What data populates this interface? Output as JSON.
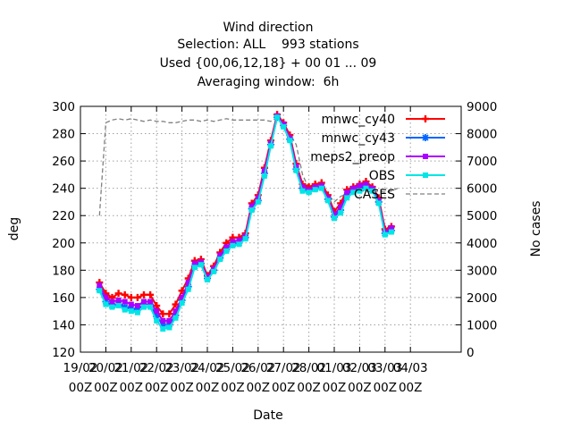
{
  "chart_data": {
    "type": "line",
    "title": [
      "Wind direction",
      "Selection: ALL    993 stations",
      "Used {00,06,12,18} + 00 01 ... 09",
      "Averaging window:  6h"
    ],
    "xlabel": "Date",
    "ylabel": "deg",
    "y2label": "No cases",
    "ylim": [
      120,
      300
    ],
    "yticks": [
      120,
      140,
      160,
      180,
      200,
      220,
      240,
      260,
      280,
      300
    ],
    "y2lim": [
      0,
      9000
    ],
    "y2ticks": [
      0,
      1000,
      2000,
      3000,
      4000,
      5000,
      6000,
      7000,
      8000,
      9000
    ],
    "xlim": [
      0,
      15
    ],
    "xticks": [
      {
        "x": 0,
        "line1": "19/02",
        "line2": "00Z"
      },
      {
        "x": 1,
        "line1": "20/02",
        "line2": "00Z"
      },
      {
        "x": 2,
        "line1": "21/02",
        "line2": "00Z"
      },
      {
        "x": 3,
        "line1": "22/02",
        "line2": "00Z"
      },
      {
        "x": 4,
        "line1": "23/02",
        "line2": "00Z"
      },
      {
        "x": 5,
        "line1": "24/02",
        "line2": "00Z"
      },
      {
        "x": 6,
        "line1": "25/02",
        "line2": "00Z"
      },
      {
        "x": 7,
        "line1": "26/02",
        "line2": "00Z"
      },
      {
        "x": 8,
        "line1": "27/02",
        "line2": "00Z"
      },
      {
        "x": 9,
        "line1": "28/02",
        "line2": "00Z"
      },
      {
        "x": 10,
        "line1": "01/03",
        "line2": "00Z"
      },
      {
        "x": 11,
        "line1": "02/03",
        "line2": "00Z"
      },
      {
        "x": 12,
        "line1": "03/03",
        "line2": "00Z"
      },
      {
        "x": 13,
        "line1": "04/03",
        "line2": "00Z"
      }
    ],
    "grid": true,
    "legend_position": "top-right",
    "x": [
      0.75,
      1,
      1.25,
      1.5,
      1.75,
      2,
      2.25,
      2.5,
      2.75,
      3,
      3.25,
      3.5,
      3.75,
      4,
      4.25,
      4.5,
      4.75,
      5,
      5.25,
      5.5,
      5.75,
      6,
      6.25,
      6.5,
      6.75,
      7,
      7.25,
      7.5,
      7.75,
      8,
      8.25,
      8.5,
      8.75,
      9,
      9.25,
      9.5,
      9.75,
      10,
      10.25,
      10.5,
      10.75,
      11,
      11.25,
      11.5,
      11.75,
      12,
      12.25,
      12.5,
      12.75,
      13
    ],
    "series": [
      {
        "name": "mnwc_cy40",
        "color": "#ff0000",
        "marker": "plus",
        "values": [
          171,
          163,
          160,
          163,
          162,
          160,
          160,
          162,
          162,
          154,
          148,
          148,
          155,
          165,
          174,
          187,
          188,
          176,
          183,
          193,
          200,
          204,
          204,
          207,
          229,
          235,
          255,
          275,
          294,
          288,
          279,
          258,
          243,
          241,
          243,
          244,
          235,
          223,
          229,
          239,
          241,
          243,
          245,
          241,
          233,
          210,
          212,
          null,
          null,
          null
        ]
      },
      {
        "name": "mnwc_cy43",
        "color": "#0066ff",
        "marker": "star",
        "values": [
          166,
          157,
          154,
          155,
          153,
          152,
          151,
          155,
          155,
          146,
          140,
          140,
          147,
          158,
          168,
          183,
          185,
          174,
          180,
          189,
          195,
          199,
          200,
          204,
          225,
          231,
          251,
          272,
          292,
          286,
          276,
          254,
          240,
          238,
          240,
          241,
          232,
          219,
          224,
          235,
          239,
          240,
          242,
          239,
          230,
          207,
          209,
          null,
          null,
          null
        ]
      },
      {
        "name": "meps2_preop",
        "color": "#aa00ff",
        "marker": "square",
        "values": [
          169,
          160,
          157,
          158,
          157,
          155,
          154,
          157,
          157,
          150,
          143,
          143,
          150,
          160,
          171,
          185,
          186,
          175,
          181,
          191,
          197,
          201,
          202,
          205,
          227,
          233,
          253,
          273,
          293,
          287,
          277,
          256,
          241,
          239,
          241,
          242,
          233,
          221,
          226,
          237,
          240,
          242,
          243,
          240,
          231,
          208,
          211,
          null,
          null,
          null
        ]
      },
      {
        "name": "OBS",
        "color": "#00e5e5",
        "marker": "square",
        "values": [
          165,
          155,
          153,
          154,
          151,
          150,
          149,
          153,
          153,
          143,
          137,
          138,
          145,
          156,
          166,
          182,
          184,
          173,
          179,
          188,
          194,
          198,
          199,
          203,
          224,
          230,
          249,
          271,
          292,
          285,
          275,
          253,
          238,
          237,
          239,
          240,
          231,
          218,
          222,
          233,
          237,
          238,
          240,
          238,
          229,
          206,
          208,
          null,
          null,
          null
        ]
      }
    ],
    "cases": {
      "name": "CASES",
      "color": "#808080",
      "style": "dashed",
      "axis": "y2",
      "values": [
        5000,
        8400,
        8500,
        8550,
        8500,
        8550,
        8500,
        8450,
        8500,
        8450,
        8450,
        8400,
        8400,
        8450,
        8500,
        8500,
        8450,
        8500,
        8450,
        8500,
        8550,
        8500,
        8500,
        8500,
        8500,
        8500,
        8500,
        8450,
        8600,
        8350,
        8000,
        7600,
        6500,
        6000,
        6000,
        6000,
        5800,
        5500,
        5700,
        5800,
        5900,
        5900,
        5900,
        5850,
        5900,
        5850,
        5900,
        6000,
        null,
        null
      ]
    }
  }
}
